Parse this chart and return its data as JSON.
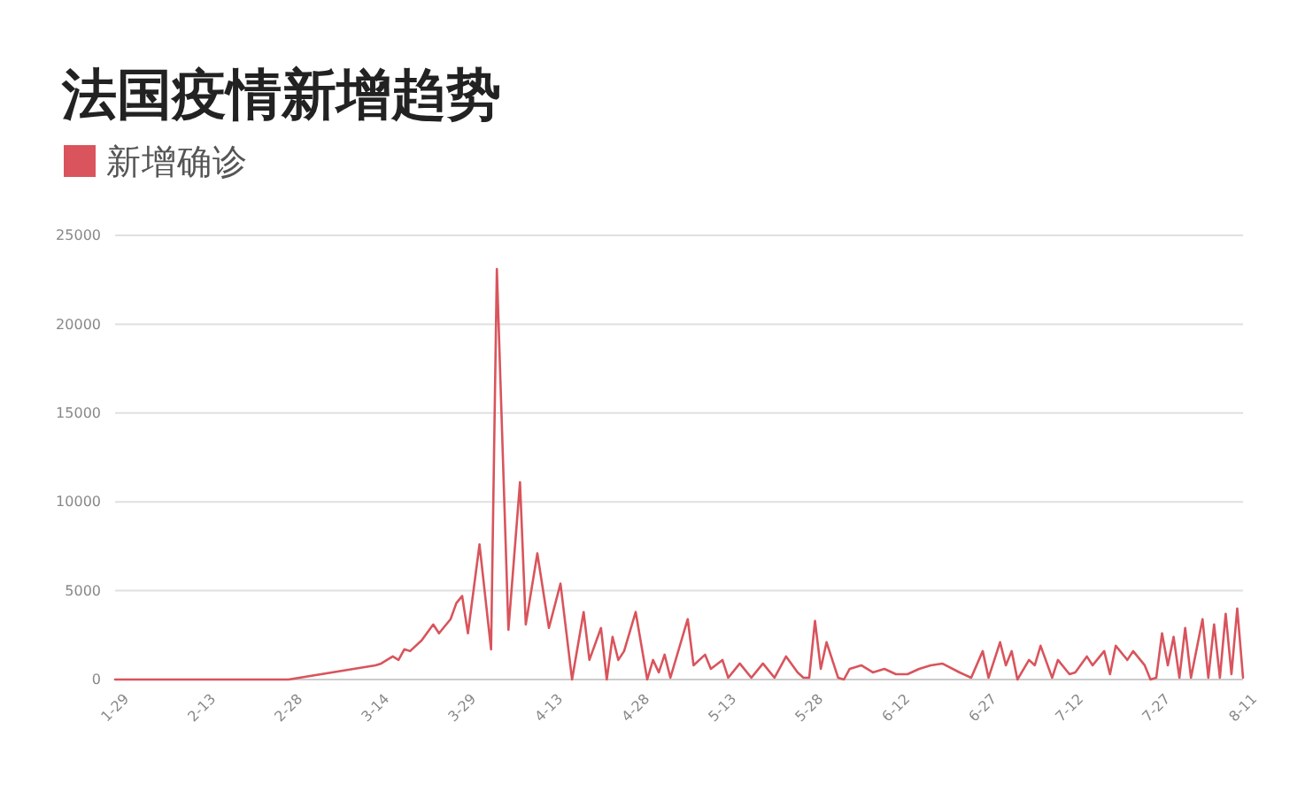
{
  "chart_data": {
    "type": "line",
    "title": "法国疫情新增趋势",
    "x": [
      "--01-29",
      "--02-13",
      "--02-28",
      "--03-14",
      "--03-15",
      "--03-17",
      "--03-18",
      "--03-19",
      "--03-20",
      "--03-22",
      "--03-24",
      "--03-25",
      "--03-27",
      "--03-28",
      "--03-29",
      "--03-30",
      "--04-01",
      "--04-03",
      "--04-04",
      "--04-06",
      "--04-08",
      "--04-09",
      "--04-11",
      "--04-13",
      "--04-15",
      "--04-17",
      "--04-19",
      "--04-20",
      "--04-22",
      "--04-23",
      "--04-24",
      "--04-25",
      "--04-26",
      "--04-28",
      "--04-30",
      "--05-01",
      "--05-02",
      "--05-03",
      "--05-04",
      "--05-07",
      "--05-08",
      "--05-10",
      "--05-11",
      "--05-13",
      "--05-14",
      "--05-16",
      "--05-18",
      "--05-20",
      "--05-22",
      "--05-24",
      "--05-26",
      "--05-27",
      "--05-28",
      "--05-29",
      "--05-30",
      "--05-31",
      "--06-02",
      "--06-03",
      "--06-04",
      "--06-06",
      "--06-08",
      "--06-10",
      "--06-12",
      "--06-14",
      "--06-16",
      "--06-18",
      "--06-20",
      "--06-23",
      "--06-25",
      "--06-27",
      "--06-28",
      "--06-30",
      "--07-01",
      "--07-02",
      "--07-03",
      "--07-05",
      "--07-06",
      "--07-07",
      "--07-09",
      "--07-10",
      "--07-12",
      "--07-13",
      "--07-15",
      "--07-16",
      "--07-18",
      "--07-19",
      "--07-20",
      "--07-22",
      "--07-23",
      "--07-25",
      "--07-26",
      "--07-27",
      "--07-28",
      "--07-29",
      "--07-30",
      "--07-31",
      "--08-01",
      "--08-02",
      "--08-04",
      "--08-05",
      "--08-06",
      "--08-07",
      "--08-08",
      "--08-09",
      "--08-10",
      "--08-11"
    ],
    "series": [
      {
        "name": "新增确诊",
        "color": "#d9545c",
        "values": [
          0,
          0,
          0,
          800,
          900,
          1300,
          1100,
          1700,
          1600,
          2200,
          3100,
          2600,
          3400,
          4300,
          4700,
          2600,
          7600,
          1700,
          23100,
          2800,
          11100,
          3100,
          7100,
          2900,
          5400,
          0,
          3800,
          1100,
          2900,
          0,
          2400,
          1100,
          1600,
          3800,
          0,
          1100,
          400,
          1400,
          100,
          3400,
          800,
          1400,
          600,
          1100,
          100,
          900,
          100,
          900,
          100,
          1300,
          400,
          100,
          100,
          3300,
          600,
          2100,
          100,
          0,
          600,
          800,
          400,
          600,
          300,
          300,
          600,
          800,
          900,
          400,
          100,
          1600,
          100,
          2100,
          800,
          1600,
          0,
          1100,
          800,
          1900,
          100,
          1100,
          300,
          400,
          1300,
          800,
          1600,
          300,
          1900,
          1100,
          1600,
          800,
          0,
          100,
          2600,
          800,
          2400,
          100,
          2900,
          100,
          3400,
          100,
          3100,
          100,
          3700,
          300,
          4000,
          100
        ]
      }
    ],
    "xlim": [
      "--01-29",
      "--08-11"
    ],
    "xticks": [
      {
        "value": "--01-29",
        "label": "1-29"
      },
      {
        "value": "--02-13",
        "label": "2-13"
      },
      {
        "value": "--02-28",
        "label": "2-28"
      },
      {
        "value": "--03-14",
        "label": "3-14"
      },
      {
        "value": "--03-29",
        "label": "3-29"
      },
      {
        "value": "--04-13",
        "label": "4-13"
      },
      {
        "value": "--04-28",
        "label": "4-28"
      },
      {
        "value": "--05-13",
        "label": "5-13"
      },
      {
        "value": "--05-28",
        "label": "5-28"
      },
      {
        "value": "--06-12",
        "label": "6-12"
      },
      {
        "value": "--06-27",
        "label": "6-27"
      },
      {
        "value": "--07-12",
        "label": "7-12"
      },
      {
        "value": "--07-27",
        "label": "7-27"
      },
      {
        "value": "--08-11",
        "label": "8-11"
      }
    ],
    "ylim": [
      0,
      25000
    ],
    "yticks": [
      0,
      5000,
      10000,
      15000,
      20000,
      25000
    ],
    "grid": "y",
    "legend": "top left"
  }
}
